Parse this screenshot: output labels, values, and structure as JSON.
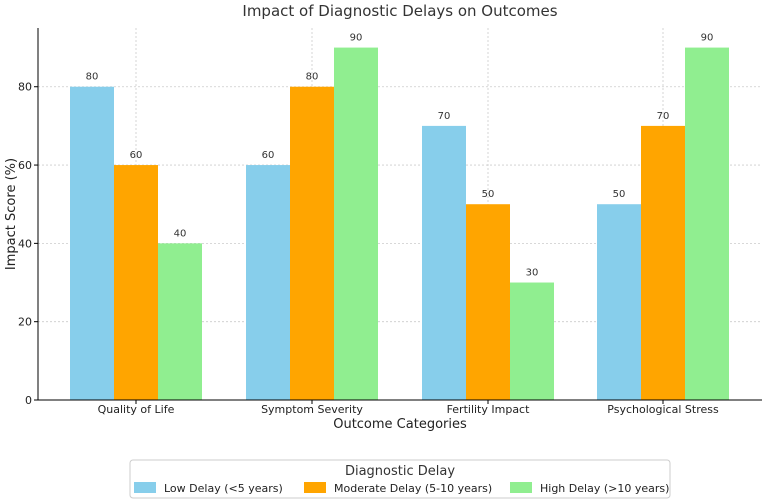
{
  "chart_data": {
    "type": "bar",
    "title": "Impact of Diagnostic Delays on Outcomes",
    "xlabel": "Outcome Categories",
    "ylabel": "Impact Score (%)",
    "ylim": [
      0,
      95
    ],
    "yticks": [
      0,
      20,
      40,
      60,
      80
    ],
    "grid": true,
    "legend_title": "Diagnostic Delay",
    "legend_position": "bottom-center",
    "categories": [
      "Quality of Life",
      "Symptom Severity",
      "Fertility Impact",
      "Psychological Stress"
    ],
    "series": [
      {
        "name": "Low Delay (<5 years)",
        "color": "#87ceeb",
        "values": [
          80,
          60,
          70,
          50
        ]
      },
      {
        "name": "Moderate Delay (5-10 years)",
        "color": "#ffa500",
        "values": [
          60,
          80,
          50,
          70
        ]
      },
      {
        "name": "High Delay (>10 years)",
        "color": "#90ee90",
        "values": [
          40,
          90,
          30,
          90
        ]
      }
    ]
  }
}
